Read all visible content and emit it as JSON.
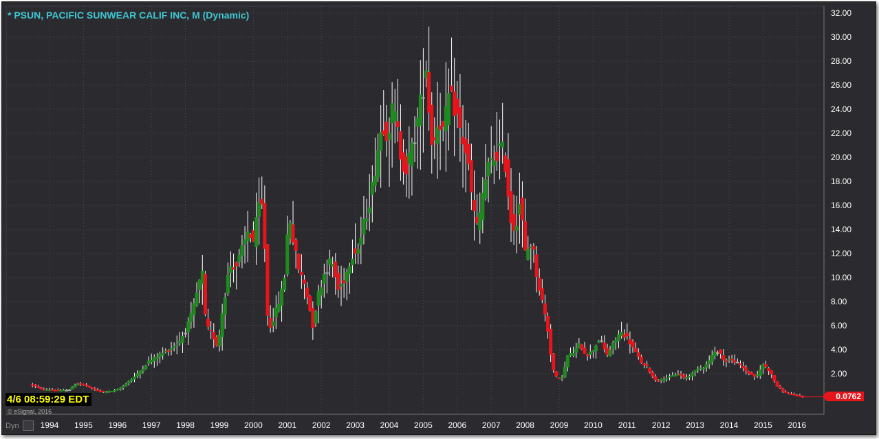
{
  "title": "* PSUN, PACIFIC SUNWEAR CALIF INC, M (Dynamic)",
  "clock": "4/6 08:59:29 EDT",
  "copyright": "© eSignal, 2016",
  "dyn_label": "Dyn",
  "last_price_label": "0.0762",
  "colors": {
    "background": "#2b2b2f",
    "up": "#1f8a1f",
    "down": "#e8141b",
    "doji": "#a6a6a6",
    "title": "#3fc6d2"
  },
  "chart_data": {
    "type": "candlestick",
    "interval": "monthly",
    "symbol": "PSUN",
    "ylim": [
      0,
      32
    ],
    "yticks": [
      "32.00",
      "30.00",
      "28.00",
      "26.00",
      "24.00",
      "22.00",
      "20.00",
      "18.00",
      "16.00",
      "14.00",
      "12.00",
      "10.00",
      "8.00",
      "6.00",
      "4.00",
      "2.00"
    ],
    "xticks": [
      "1994",
      "1995",
      "1996",
      "1997",
      "1998",
      "1999",
      "2000",
      "2001",
      "2002",
      "2003",
      "2004",
      "2005",
      "2006",
      "2007",
      "2008",
      "2009",
      "2010",
      "2011",
      "2012",
      "2013",
      "2014",
      "2015",
      "2016"
    ],
    "grid": true,
    "last_price": 0.0762,
    "series": [
      {
        "t": 1993.5,
        "v": 1.1
      },
      {
        "t": 1993.6,
        "v": 0.9
      },
      {
        "t": 1993.7,
        "v": 0.8
      },
      {
        "t": 1993.8,
        "v": 0.7
      },
      {
        "t": 1994.0,
        "v": 0.7
      },
      {
        "t": 1994.3,
        "v": 0.6
      },
      {
        "t": 1994.6,
        "v": 0.7
      },
      {
        "t": 1994.8,
        "v": 1.2
      },
      {
        "t": 1995.0,
        "v": 1.1
      },
      {
        "t": 1995.3,
        "v": 0.7
      },
      {
        "t": 1995.6,
        "v": 0.5
      },
      {
        "t": 1995.9,
        "v": 0.6
      },
      {
        "t": 1996.1,
        "v": 0.8
      },
      {
        "t": 1996.3,
        "v": 1.3
      },
      {
        "t": 1996.6,
        "v": 2.0
      },
      {
        "t": 1996.9,
        "v": 3.0
      },
      {
        "t": 1997.2,
        "v": 3.5
      },
      {
        "t": 1997.5,
        "v": 4.0
      },
      {
        "t": 1997.8,
        "v": 4.6
      },
      {
        "t": 1998.0,
        "v": 5.6
      },
      {
        "t": 1998.2,
        "v": 7.0
      },
      {
        "t": 1998.4,
        "v": 9.5
      },
      {
        "t": 1998.5,
        "v": 10.3
      },
      {
        "t": 1998.6,
        "v": 6.0
      },
      {
        "t": 1998.8,
        "v": 5.2
      },
      {
        "t": 1998.95,
        "v": 4.2
      },
      {
        "t": 1999.1,
        "v": 7.5
      },
      {
        "t": 1999.3,
        "v": 11.0
      },
      {
        "t": 1999.5,
        "v": 11.0
      },
      {
        "t": 1999.7,
        "v": 12.5
      },
      {
        "t": 1999.85,
        "v": 14.0
      },
      {
        "t": 2000.0,
        "v": 13.0
      },
      {
        "t": 2000.2,
        "v": 16.5
      },
      {
        "t": 2000.3,
        "v": 15.3
      },
      {
        "t": 2000.4,
        "v": 7.0
      },
      {
        "t": 2000.5,
        "v": 6.0
      },
      {
        "t": 2000.7,
        "v": 7.5
      },
      {
        "t": 2000.9,
        "v": 9.5
      },
      {
        "t": 2001.05,
        "v": 15.5
      },
      {
        "t": 2001.2,
        "v": 12.5
      },
      {
        "t": 2001.35,
        "v": 10.5
      },
      {
        "t": 2001.5,
        "v": 9.5
      },
      {
        "t": 2001.6,
        "v": 8.3
      },
      {
        "t": 2001.75,
        "v": 6.0
      },
      {
        "t": 2001.9,
        "v": 8.5
      },
      {
        "t": 2002.1,
        "v": 10.5
      },
      {
        "t": 2002.3,
        "v": 11.5
      },
      {
        "t": 2002.5,
        "v": 9.0
      },
      {
        "t": 2002.7,
        "v": 10.0
      },
      {
        "t": 2002.9,
        "v": 12.0
      },
      {
        "t": 2003.1,
        "v": 12.5
      },
      {
        "t": 2003.3,
        "v": 15.0
      },
      {
        "t": 2003.5,
        "v": 17.5
      },
      {
        "t": 2003.65,
        "v": 20.5
      },
      {
        "t": 2003.8,
        "v": 23.0
      },
      {
        "t": 2003.95,
        "v": 22.0
      },
      {
        "t": 2004.1,
        "v": 24.0
      },
      {
        "t": 2004.2,
        "v": 23.0
      },
      {
        "t": 2004.35,
        "v": 20.0
      },
      {
        "t": 2004.5,
        "v": 19.0
      },
      {
        "t": 2004.65,
        "v": 20.5
      },
      {
        "t": 2004.8,
        "v": 22.5
      },
      {
        "t": 2004.95,
        "v": 25.0
      },
      {
        "t": 2005.1,
        "v": 28.0
      },
      {
        "t": 2005.2,
        "v": 22.0
      },
      {
        "t": 2005.3,
        "v": 21.0
      },
      {
        "t": 2005.45,
        "v": 23.5
      },
      {
        "t": 2005.6,
        "v": 22.0
      },
      {
        "t": 2005.75,
        "v": 25.0
      },
      {
        "t": 2005.95,
        "v": 24.0
      },
      {
        "t": 2006.1,
        "v": 22.0
      },
      {
        "t": 2006.3,
        "v": 20.0
      },
      {
        "t": 2006.45,
        "v": 16.0
      },
      {
        "t": 2006.6,
        "v": 14.0
      },
      {
        "t": 2006.75,
        "v": 17.0
      },
      {
        "t": 2006.9,
        "v": 19.0
      },
      {
        "t": 2007.1,
        "v": 20.0
      },
      {
        "t": 2007.3,
        "v": 21.0
      },
      {
        "t": 2007.45,
        "v": 19.0
      },
      {
        "t": 2007.55,
        "v": 15.0
      },
      {
        "t": 2007.7,
        "v": 14.0
      },
      {
        "t": 2007.85,
        "v": 16.5
      },
      {
        "t": 2008.0,
        "v": 12.0
      },
      {
        "t": 2008.2,
        "v": 13.0
      },
      {
        "t": 2008.35,
        "v": 10.0
      },
      {
        "t": 2008.5,
        "v": 8.0
      },
      {
        "t": 2008.65,
        "v": 6.0
      },
      {
        "t": 2008.8,
        "v": 2.5
      },
      {
        "t": 2008.95,
        "v": 1.5
      },
      {
        "t": 2009.1,
        "v": 1.8
      },
      {
        "t": 2009.25,
        "v": 3.5
      },
      {
        "t": 2009.45,
        "v": 3.8
      },
      {
        "t": 2009.6,
        "v": 4.5
      },
      {
        "t": 2009.8,
        "v": 3.5
      },
      {
        "t": 2010.0,
        "v": 4.0
      },
      {
        "t": 2010.2,
        "v": 5.0
      },
      {
        "t": 2010.4,
        "v": 3.5
      },
      {
        "t": 2010.6,
        "v": 4.5
      },
      {
        "t": 2010.8,
        "v": 5.5
      },
      {
        "t": 2011.0,
        "v": 5.0
      },
      {
        "t": 2011.2,
        "v": 4.0
      },
      {
        "t": 2011.4,
        "v": 3.0
      },
      {
        "t": 2011.6,
        "v": 2.5
      },
      {
        "t": 2011.8,
        "v": 1.5
      },
      {
        "t": 2012.0,
        "v": 1.5
      },
      {
        "t": 2012.3,
        "v": 1.8
      },
      {
        "t": 2012.5,
        "v": 2.0
      },
      {
        "t": 2012.7,
        "v": 1.6
      },
      {
        "t": 2012.9,
        "v": 2.0
      },
      {
        "t": 2013.1,
        "v": 2.5
      },
      {
        "t": 2013.3,
        "v": 2.6
      },
      {
        "t": 2013.5,
        "v": 3.5
      },
      {
        "t": 2013.7,
        "v": 4.0
      },
      {
        "t": 2013.85,
        "v": 3.0
      },
      {
        "t": 2014.0,
        "v": 3.2
      },
      {
        "t": 2014.2,
        "v": 3.0
      },
      {
        "t": 2014.4,
        "v": 2.5
      },
      {
        "t": 2014.6,
        "v": 2.0
      },
      {
        "t": 2014.8,
        "v": 1.7
      },
      {
        "t": 2015.0,
        "v": 2.8
      },
      {
        "t": 2015.2,
        "v": 2.2
      },
      {
        "t": 2015.4,
        "v": 1.0
      },
      {
        "t": 2015.6,
        "v": 0.5
      },
      {
        "t": 2015.8,
        "v": 0.3
      },
      {
        "t": 2016.0,
        "v": 0.2
      },
      {
        "t": 2016.2,
        "v": 0.08
      }
    ]
  }
}
